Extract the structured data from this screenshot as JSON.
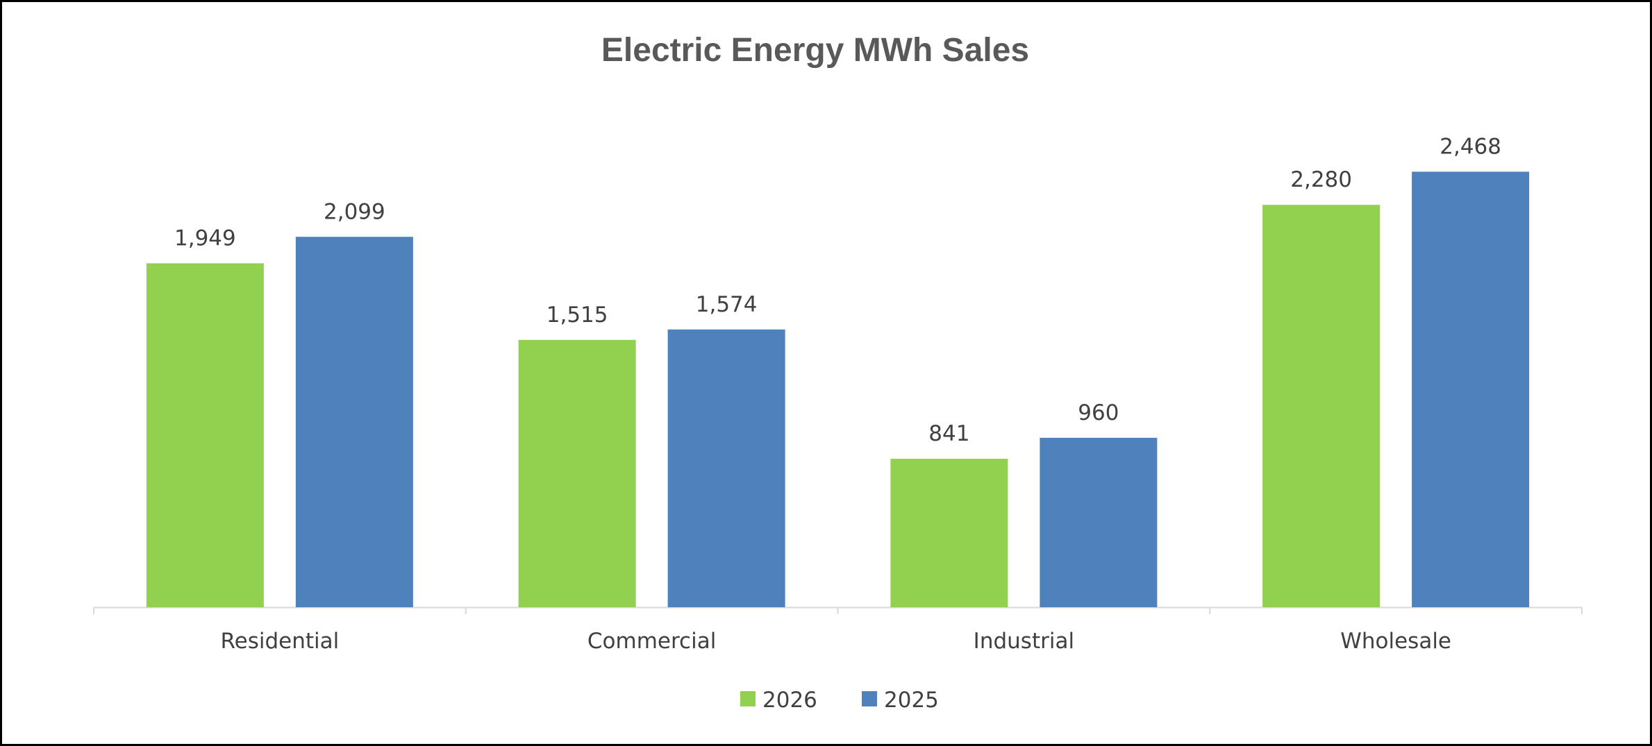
{
  "chart_data": {
    "type": "bar",
    "title": "Electric Energy MWh Sales",
    "categories": [
      "Residential",
      "Commercial",
      "Industrial",
      "Wholesale"
    ],
    "series": [
      {
        "name": "2026",
        "values": [
          1949,
          1515,
          841,
          2280
        ],
        "color": "#92D050",
        "labels": [
          "1,949",
          "1,515",
          "841",
          "2,280"
        ]
      },
      {
        "name": "2025",
        "values": [
          2099,
          1574,
          960,
          2468
        ],
        "color": "#4F81BD",
        "labels": [
          "2,099",
          "1,574",
          "960",
          "2,468"
        ]
      }
    ],
    "ylim": [
      0,
      2800
    ],
    "grid": false,
    "legend": "bottom",
    "xlabel": "",
    "ylabel": ""
  }
}
